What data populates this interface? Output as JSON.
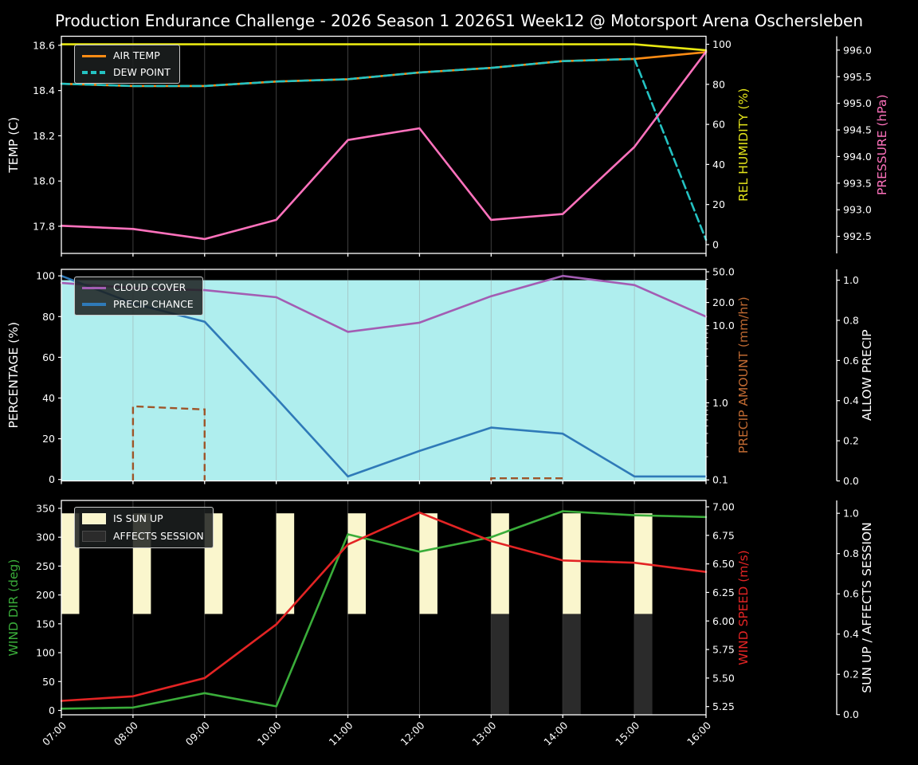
{
  "title": "Production Endurance Challenge - 2026 Season 1 2026S1 Week12 @ Motorsport Arena Oschersleben",
  "chart_data": {
    "type": "line",
    "grid": "vertical-hour-gridlines",
    "x_categories": [
      "07:00",
      "08:00",
      "09:00",
      "10:00",
      "11:00",
      "12:00",
      "13:00",
      "14:00",
      "15:00",
      "16:00"
    ],
    "panels": [
      {
        "name": "temperature-humidity-pressure",
        "legend_entries": [
          "AIR TEMP",
          "DEW POINT"
        ],
        "axes": {
          "temp": {
            "label": "TEMP (C)",
            "color": "#ffffff",
            "position": "left",
            "range": [
              17.68,
              18.64
            ],
            "ticks": [
              [
                17.8,
                "17.8"
              ],
              [
                18.0,
                "18.0"
              ],
              [
                18.2,
                "18.2"
              ],
              [
                18.4,
                "18.4"
              ],
              [
                18.6,
                "18.6"
              ]
            ]
          },
          "humidity": {
            "label": "REL HUMIDITY (%)",
            "color": "#e4e41a",
            "position": "right",
            "range": [
              -4.4,
              104
            ],
            "ticks": [
              [
                0,
                "0"
              ],
              [
                20,
                "20"
              ],
              [
                40,
                "40"
              ],
              [
                60,
                "60"
              ],
              [
                80,
                "80"
              ],
              [
                100,
                "100"
              ]
            ]
          },
          "pressure": {
            "label": "PRESSURE (hPa)",
            "color": "#ff72bd",
            "position": "outer",
            "range": [
              992.18,
              996.26
            ],
            "ticks": [
              [
                992.5,
                "992.5"
              ],
              [
                993.0,
                "993.0"
              ],
              [
                993.5,
                "993.5"
              ],
              [
                994.0,
                "994.0"
              ],
              [
                994.5,
                "994.5"
              ],
              [
                995.0,
                "995.0"
              ],
              [
                995.5,
                "995.5"
              ],
              [
                996.0,
                "996.0"
              ]
            ]
          }
        },
        "series": [
          {
            "name": "AIR TEMP",
            "axis": "temp",
            "color": "#ff8c14",
            "dash": false,
            "values": [
              18.43,
              18.42,
              18.42,
              18.44,
              18.45,
              18.48,
              18.5,
              18.53,
              18.54,
              18.57
            ]
          },
          {
            "name": "DEW POINT",
            "axis": "temp",
            "color": "#24c2c2",
            "dash": true,
            "values": [
              18.43,
              18.42,
              18.42,
              18.44,
              18.45,
              18.48,
              18.5,
              18.53,
              18.54,
              17.74
            ]
          },
          {
            "name": "REL HUMIDITY",
            "axis": "humidity",
            "color": "#e8e812",
            "dash": false,
            "values": [
              100,
              100,
              100,
              100,
              100,
              100,
              100,
              100,
              100,
              97
            ]
          },
          {
            "name": "PRESSURE",
            "axis": "pressure",
            "color": "#ff72bd",
            "dash": false,
            "values": [
              992.7,
              992.64,
              992.45,
              992.81,
              994.31,
              994.53,
              992.81,
              992.92,
              994.18,
              995.97
            ]
          }
        ]
      },
      {
        "name": "cloud-precip",
        "legend_entries": [
          "CLOUD COVER",
          "PRECIP CHANCE"
        ],
        "axes": {
          "percentage": {
            "label": "PERCENTAGE (%)",
            "color": "#ffffff",
            "position": "left",
            "range": [
              -0.7,
              103.2
            ],
            "ticks": [
              [
                0,
                "0"
              ],
              [
                20,
                "20"
              ],
              [
                40,
                "40"
              ],
              [
                60,
                "60"
              ],
              [
                80,
                "80"
              ],
              [
                100,
                "100"
              ]
            ]
          },
          "precip_amount": {
            "label": "PRECIP AMOUNT (mm/hr)",
            "color": "#c06a32",
            "position": "right",
            "log": true,
            "range": [
              0.097,
              53.8
            ],
            "ticks": [
              [
                50,
                "50.0"
              ],
              [
                20,
                "20.0"
              ],
              [
                10,
                "10.0"
              ],
              [
                1,
                "1.0"
              ],
              [
                0.1,
                "0.1"
              ]
            ],
            "minor_ticks": [
              0.2,
              0.3,
              0.4,
              0.5,
              0.6,
              0.7,
              0.8,
              0.9,
              2,
              3,
              4,
              5,
              6,
              7,
              8,
              9,
              30,
              40
            ]
          },
          "allow_precip": {
            "label": "ALLOW PRECIP",
            "color": "#ffffff",
            "position": "outer",
            "range": [
              0,
              1.054
            ],
            "ticks": [
              [
                0,
                "0.0"
              ],
              [
                0.2,
                "0.2"
              ],
              [
                0.4,
                "0.4"
              ],
              [
                0.6,
                "0.6"
              ],
              [
                0.8,
                "0.8"
              ],
              [
                1.0,
                "1.0"
              ]
            ]
          }
        },
        "fill": {
          "name": "ALLOW PRECIP",
          "axis": "allow_precip",
          "value": 1.0,
          "color": "#afeeee"
        },
        "segments_series": {
          "name": "PRECIP AMOUNT",
          "axis": "precip_amount",
          "color": "#9e5529",
          "dash": true,
          "segments": [
            {
              "from_hour": 1,
              "to_hour": 2,
              "values": [
                0.9,
                0.82
              ]
            },
            {
              "from_hour": 6,
              "to_hour": 7,
              "values": [
                0.105,
                0.105
              ]
            }
          ]
        },
        "series": [
          {
            "name": "CLOUD COVER",
            "axis": "percentage",
            "color": "#a35db3",
            "dash": false,
            "values": [
              96.5,
              94,
              93,
              89.5,
              72.5,
              77,
              90,
              100,
              95.5,
              80
            ]
          },
          {
            "name": "PRECIP CHANCE",
            "axis": "percentage",
            "color": "#2f7ab8",
            "dash": false,
            "values": [
              100,
              86.5,
              77.5,
              40,
              1.5,
              14,
              25.5,
              22.5,
              1.5,
              1.5
            ]
          }
        ]
      },
      {
        "name": "wind-sun",
        "legend_entries": [
          "IS SUN UP",
          "AFFECTS SESSION"
        ],
        "axes": {
          "wind_dir": {
            "label": "WIND DIR (deg)",
            "color": "#3aad3a",
            "position": "left",
            "range": [
              -7.6,
              363.7
            ],
            "ticks": [
              [
                0,
                "0"
              ],
              [
                50,
                "50"
              ],
              [
                100,
                "100"
              ],
              [
                150,
                "150"
              ],
              [
                200,
                "200"
              ],
              [
                250,
                "250"
              ],
              [
                300,
                "300"
              ],
              [
                350,
                "350"
              ]
            ]
          },
          "wind_speed": {
            "label": "WIND SPEED (m/s)",
            "color": "#e32424",
            "position": "right",
            "range": [
              5.178,
              7.056
            ],
            "ticks": [
              [
                5.25,
                "5.25"
              ],
              [
                5.5,
                "5.50"
              ],
              [
                5.75,
                "5.75"
              ],
              [
                6.0,
                "6.00"
              ],
              [
                6.25,
                "6.25"
              ],
              [
                6.5,
                "6.50"
              ],
              [
                6.75,
                "6.75"
              ],
              [
                7.0,
                "7.00"
              ]
            ]
          },
          "sun": {
            "label": "SUN UP / AFFECTS SESSION",
            "color": "#ffffff",
            "position": "outer",
            "range": [
              -0.001,
              1.064
            ],
            "ticks": [
              [
                0,
                "0.0"
              ],
              [
                0.2,
                "0.2"
              ],
              [
                0.4,
                "0.4"
              ],
              [
                0.6,
                "0.6"
              ],
              [
                0.8,
                "0.8"
              ],
              [
                1.0,
                "1.0"
              ]
            ]
          }
        },
        "bars": [
          {
            "name": "IS SUN UP",
            "axis": "sun",
            "color": "#faf6cd",
            "from": 0.5,
            "to": 1.0,
            "present": [
              1,
              1,
              1,
              1,
              1,
              1,
              1,
              1,
              1,
              0
            ]
          },
          {
            "name": "AFFECTS SESSION",
            "axis": "sun",
            "color": "#2b2b2b",
            "from": 0.0,
            "to": 0.5,
            "present": [
              0,
              0,
              0,
              0,
              0,
              0,
              1,
              1,
              1,
              0
            ]
          }
        ],
        "series": [
          {
            "name": "WIND DIR",
            "axis": "wind_dir",
            "color": "#3aad3a",
            "dash": false,
            "values": [
              3,
              5,
              30,
              7,
              305,
              275,
              300,
              345,
              338,
              335
            ]
          },
          {
            "name": "WIND SPEED",
            "axis": "wind_speed",
            "color": "#e32424",
            "dash": false,
            "values": [
              5.3,
              5.34,
              5.5,
              5.97,
              6.67,
              6.95,
              6.7,
              6.53,
              6.51,
              6.43
            ]
          }
        ]
      }
    ]
  }
}
